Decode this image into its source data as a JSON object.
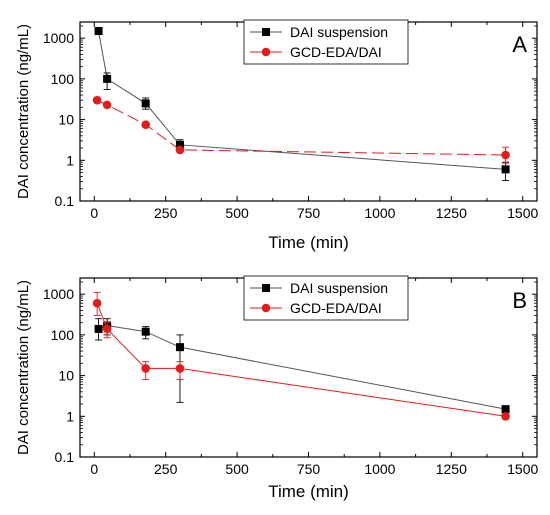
{
  "chart_data": [
    {
      "type": "line",
      "panel_label": "A",
      "xlabel": "Time (min)",
      "ylabel": "DAI concentration (ng/mL)",
      "xlim": [
        -50,
        1550
      ],
      "ylim": [
        0.1,
        2500
      ],
      "yscale": "log",
      "xticks": [
        "0",
        "250",
        "500",
        "750",
        "1000",
        "1250",
        "1500"
      ],
      "yticks": [
        "0.1",
        "1",
        "10",
        "100",
        "1000"
      ],
      "legend_position": "top-right",
      "series": [
        {
          "name": "DAI suspension",
          "marker": "square",
          "color": "#000000",
          "line_color": "#555555",
          "line_style": "solid",
          "x": [
            15,
            45,
            180,
            300,
            1440
          ],
          "y": [
            1500,
            100,
            25,
            2.4,
            0.6
          ],
          "err_low": [
            1300,
            55,
            18,
            1.7,
            0.32
          ],
          "err_high": [
            1800,
            140,
            34,
            3.2,
            0.9
          ]
        },
        {
          "name": "GCD-EDA/DAI",
          "marker": "circle",
          "color": "#e41a1c",
          "line_color": "#e41a1c",
          "line_style": "dashed",
          "x": [
            10,
            45,
            180,
            300,
            1440
          ],
          "y": [
            30,
            23,
            7.5,
            1.8,
            1.35
          ],
          "err_low": [
            28,
            21,
            6.8,
            1.6,
            0.85
          ],
          "err_high": [
            32,
            25,
            8.3,
            2.0,
            2.1
          ]
        }
      ]
    },
    {
      "type": "line",
      "panel_label": "B",
      "xlabel": "Time (min)",
      "ylabel": "DAI concentration (ng/mL)",
      "xlim": [
        -50,
        1550
      ],
      "ylim": [
        0.1,
        2500
      ],
      "yscale": "log",
      "xticks": [
        "0",
        "250",
        "500",
        "750",
        "1000",
        "1250",
        "1500"
      ],
      "yticks": [
        "0.1",
        "1",
        "10",
        "100",
        "1000"
      ],
      "legend_position": "top-right",
      "series": [
        {
          "name": "DAI suspension",
          "marker": "square",
          "color": "#000000",
          "line_color": "#555555",
          "line_style": "solid",
          "x": [
            15,
            45,
            180,
            300,
            1440
          ],
          "y": [
            140,
            170,
            120,
            50,
            1.5
          ],
          "err_low": [
            75,
            100,
            80,
            2.2,
            1.3
          ],
          "err_high": [
            250,
            250,
            160,
            100,
            1.7
          ]
        },
        {
          "name": "GCD-EDA/DAI",
          "marker": "circle",
          "color": "#e41a1c",
          "line_color": "#e41a1c",
          "line_style": "solid",
          "x": [
            10,
            45,
            180,
            300,
            1440
          ],
          "y": [
            600,
            140,
            15,
            15,
            1.0
          ],
          "err_low": [
            300,
            85,
            8,
            8,
            0.85
          ],
          "err_high": [
            1100,
            200,
            22,
            22,
            1.15
          ]
        }
      ]
    }
  ]
}
